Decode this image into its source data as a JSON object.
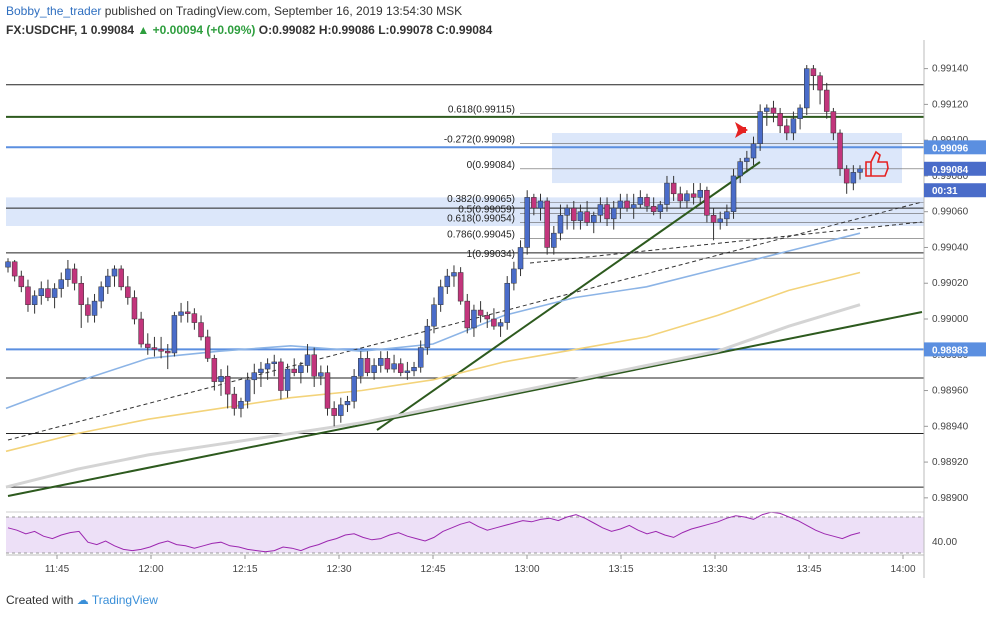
{
  "header": {
    "author": "Bobby_the_trader",
    "published": "published on TradingView.com, September 16, 2019 13:54:30 MSK"
  },
  "quote": {
    "symbol": "FX:USDCHF, 1",
    "last": "0.99084",
    "change_icon": "triangle-up-icon",
    "change": "+0.00094 (+0.09%)",
    "open": "O:0.99082",
    "high": "H:0.99086",
    "low": "L:0.99078",
    "close": "C:0.99084"
  },
  "footer": {
    "created_with": "Created with",
    "brand": "TradingView",
    "brand_icon": "tradingview-logo-icon"
  },
  "colors": {
    "up": "#4a6cc9",
    "down": "#c2357c",
    "ma_blue": "#8cb4e6",
    "ma_yellow": "#f3d37a",
    "ma_gray": "#d4d4d4",
    "trend": "#2d5a1e",
    "level_blue": "#5b8fe0",
    "rsi_line": "#9c27b0",
    "rsi_band": "#ede0f7",
    "zone": "#dce7fa",
    "arrow": "#e52222"
  },
  "chart_data": [
    {
      "type": "candlestick",
      "title": "FX:USDCHF, 1",
      "xlabel": "",
      "ylabel": "",
      "x_ticks": [
        "11:45",
        "12:00",
        "12:15",
        "12:30",
        "12:45",
        "13:00",
        "13:15",
        "13:30",
        "13:45",
        "14:00"
      ],
      "y_ticks": [
        "0.98900",
        "0.98920",
        "0.98940",
        "0.98960",
        "0.98980",
        "0.99000",
        "0.99020",
        "0.99040",
        "0.99060",
        "0.99080",
        "0.99100",
        "0.99120",
        "0.99140"
      ],
      "ylim": [
        0.98896,
        0.99156
      ],
      "candle_timeframe": "1 minute",
      "candles": [
        [
          0.99029,
          0.99034,
          0.99026,
          0.99032
        ],
        [
          0.99032,
          0.99033,
          0.99021,
          0.99024
        ],
        [
          0.99024,
          0.99027,
          0.99015,
          0.99018
        ],
        [
          0.99018,
          0.99022,
          0.99004,
          0.99008
        ],
        [
          0.99008,
          0.99016,
          0.99003,
          0.99013
        ],
        [
          0.99013,
          0.99021,
          0.99008,
          0.99017
        ],
        [
          0.99017,
          0.99022,
          0.9901,
          0.99012
        ],
        [
          0.99012,
          0.9902,
          0.99006,
          0.99017
        ],
        [
          0.99017,
          0.99026,
          0.99012,
          0.99022
        ],
        [
          0.99022,
          0.99033,
          0.99018,
          0.99028
        ],
        [
          0.99028,
          0.99031,
          0.99016,
          0.9902
        ],
        [
          0.9902,
          0.99024,
          0.98995,
          0.99008
        ],
        [
          0.99008,
          0.99012,
          0.98998,
          0.99002
        ],
        [
          0.99002,
          0.99014,
          0.98998,
          0.9901
        ],
        [
          0.9901,
          0.99021,
          0.99006,
          0.99018
        ],
        [
          0.99018,
          0.99028,
          0.99014,
          0.99024
        ],
        [
          0.99024,
          0.9903,
          0.99018,
          0.99028
        ],
        [
          0.99028,
          0.9903,
          0.99016,
          0.99018
        ],
        [
          0.99018,
          0.99024,
          0.99008,
          0.99012
        ],
        [
          0.99012,
          0.99016,
          0.98997,
          0.99
        ],
        [
          0.99,
          0.99004,
          0.98984,
          0.98986
        ],
        [
          0.98986,
          0.98992,
          0.9898,
          0.98984
        ],
        [
          0.98984,
          0.9899,
          0.98979,
          0.98983
        ],
        [
          0.98983,
          0.9899,
          0.98978,
          0.98982
        ],
        [
          0.98982,
          0.98986,
          0.98972,
          0.98981
        ],
        [
          0.98981,
          0.99004,
          0.98979,
          0.99002
        ],
        [
          0.99002,
          0.99009,
          0.98998,
          0.99004
        ],
        [
          0.99004,
          0.9901,
          0.98998,
          0.99003
        ],
        [
          0.99003,
          0.99006,
          0.98994,
          0.98998
        ],
        [
          0.98998,
          0.99002,
          0.98988,
          0.9899
        ],
        [
          0.9899,
          0.98994,
          0.98976,
          0.98978
        ],
        [
          0.98978,
          0.9898,
          0.9896,
          0.98965
        ],
        [
          0.98965,
          0.98972,
          0.98957,
          0.98968
        ],
        [
          0.98968,
          0.98974,
          0.9895,
          0.98958
        ],
        [
          0.98958,
          0.98962,
          0.98946,
          0.9895
        ],
        [
          0.9895,
          0.98956,
          0.98945,
          0.98954
        ],
        [
          0.98954,
          0.9897,
          0.9895,
          0.98966
        ],
        [
          0.98966,
          0.98975,
          0.98958,
          0.9897
        ],
        [
          0.9897,
          0.98976,
          0.98962,
          0.98972
        ],
        [
          0.98972,
          0.98978,
          0.98966,
          0.98975
        ],
        [
          0.98975,
          0.9898,
          0.98968,
          0.98976
        ],
        [
          0.98976,
          0.98978,
          0.98955,
          0.9896
        ],
        [
          0.9896,
          0.98975,
          0.98956,
          0.98972
        ],
        [
          0.98972,
          0.98978,
          0.98968,
          0.9897
        ],
        [
          0.9897,
          0.98976,
          0.98964,
          0.98974
        ],
        [
          0.98974,
          0.98986,
          0.9897,
          0.9898
        ],
        [
          0.9898,
          0.98984,
          0.98962,
          0.98968
        ],
        [
          0.98968,
          0.98974,
          0.98963,
          0.9897
        ],
        [
          0.9897,
          0.98974,
          0.98946,
          0.9895
        ],
        [
          0.9895,
          0.98954,
          0.9894,
          0.98946
        ],
        [
          0.98946,
          0.98956,
          0.98942,
          0.98952
        ],
        [
          0.98952,
          0.98957,
          0.98948,
          0.98954
        ],
        [
          0.98954,
          0.98972,
          0.9895,
          0.98968
        ],
        [
          0.98968,
          0.98982,
          0.98964,
          0.98978
        ],
        [
          0.98978,
          0.98982,
          0.98968,
          0.9897
        ],
        [
          0.9897,
          0.98978,
          0.98966,
          0.98974
        ],
        [
          0.98974,
          0.98982,
          0.9897,
          0.98978
        ],
        [
          0.98978,
          0.98982,
          0.9897,
          0.98972
        ],
        [
          0.98972,
          0.9898,
          0.9897,
          0.98975
        ],
        [
          0.98975,
          0.98978,
          0.98968,
          0.9897
        ],
        [
          0.9897,
          0.98976,
          0.98966,
          0.98971
        ],
        [
          0.98971,
          0.98976,
          0.98968,
          0.98973
        ],
        [
          0.98973,
          0.98988,
          0.9897,
          0.98984
        ],
        [
          0.98984,
          0.99,
          0.9898,
          0.98996
        ],
        [
          0.98996,
          0.99012,
          0.98992,
          0.99008
        ],
        [
          0.99008,
          0.99022,
          0.99004,
          0.99018
        ],
        [
          0.99018,
          0.99028,
          0.99014,
          0.99024
        ],
        [
          0.99024,
          0.9903,
          0.99018,
          0.99026
        ],
        [
          0.99026,
          0.99029,
          0.99008,
          0.9901
        ],
        [
          0.9901,
          0.99014,
          0.98992,
          0.98995
        ],
        [
          0.98995,
          0.99008,
          0.9899,
          0.99005
        ],
        [
          0.99005,
          0.9901,
          0.98998,
          0.99002
        ],
        [
          0.99002,
          0.99004,
          0.98995,
          0.99
        ],
        [
          0.99,
          0.99006,
          0.98994,
          0.98996
        ],
        [
          0.98996,
          0.99,
          0.9899,
          0.98998
        ],
        [
          0.98998,
          0.99024,
          0.98994,
          0.9902
        ],
        [
          0.9902,
          0.99032,
          0.99016,
          0.99028
        ],
        [
          0.99028,
          0.99044,
          0.99024,
          0.9904
        ],
        [
          0.9904,
          0.99072,
          0.99036,
          0.99068
        ],
        [
          0.99068,
          0.9907,
          0.99058,
          0.99062
        ],
        [
          0.99062,
          0.9907,
          0.99055,
          0.99066
        ],
        [
          0.99066,
          0.99068,
          0.99036,
          0.9904
        ],
        [
          0.9904,
          0.99052,
          0.99036,
          0.99048
        ],
        [
          0.99048,
          0.99064,
          0.99044,
          0.99058
        ],
        [
          0.99058,
          0.99064,
          0.9905,
          0.99062
        ],
        [
          0.99062,
          0.99066,
          0.9905,
          0.99055
        ],
        [
          0.99055,
          0.99064,
          0.9905,
          0.9906
        ],
        [
          0.9906,
          0.99066,
          0.99052,
          0.99054
        ],
        [
          0.99054,
          0.9906,
          0.99048,
          0.99058
        ],
        [
          0.99058,
          0.99068,
          0.99054,
          0.99064
        ],
        [
          0.99064,
          0.99068,
          0.99052,
          0.99056
        ],
        [
          0.99056,
          0.99066,
          0.9905,
          0.99062
        ],
        [
          0.99062,
          0.9907,
          0.99056,
          0.99066
        ],
        [
          0.99066,
          0.9907,
          0.9906,
          0.99062
        ],
        [
          0.99062,
          0.9907,
          0.99056,
          0.99064
        ],
        [
          0.99064,
          0.99072,
          0.99062,
          0.99068
        ],
        [
          0.99068,
          0.9907,
          0.9906,
          0.99063
        ],
        [
          0.99063,
          0.99068,
          0.99058,
          0.9906
        ],
        [
          0.9906,
          0.99066,
          0.99056,
          0.99064
        ],
        [
          0.99064,
          0.9908,
          0.9906,
          0.99076
        ],
        [
          0.99076,
          0.9908,
          0.99066,
          0.9907
        ],
        [
          0.9907,
          0.99074,
          0.99062,
          0.99066
        ],
        [
          0.99066,
          0.99072,
          0.99062,
          0.9907
        ],
        [
          0.9907,
          0.99076,
          0.99064,
          0.99068
        ],
        [
          0.99068,
          0.99076,
          0.99064,
          0.99072
        ],
        [
          0.99072,
          0.99074,
          0.99054,
          0.99058
        ],
        [
          0.99058,
          0.99062,
          0.99044,
          0.99054
        ],
        [
          0.99054,
          0.9906,
          0.9905,
          0.99056
        ],
        [
          0.99056,
          0.99064,
          0.99052,
          0.9906
        ],
        [
          0.9906,
          0.99084,
          0.99056,
          0.9908
        ],
        [
          0.9908,
          0.9909,
          0.99076,
          0.99088
        ],
        [
          0.99088,
          0.99094,
          0.99082,
          0.9909
        ],
        [
          0.9909,
          0.99102,
          0.99086,
          0.99098
        ],
        [
          0.99098,
          0.9912,
          0.99094,
          0.99116
        ],
        [
          0.99116,
          0.9912,
          0.99108,
          0.99118
        ],
        [
          0.99118,
          0.99122,
          0.9911,
          0.99115
        ],
        [
          0.99115,
          0.99118,
          0.99104,
          0.99108
        ],
        [
          0.99108,
          0.99112,
          0.991,
          0.99104
        ],
        [
          0.99104,
          0.99116,
          0.991,
          0.99112
        ],
        [
          0.99112,
          0.9912,
          0.99106,
          0.99118
        ],
        [
          0.99118,
          0.99142,
          0.99114,
          0.9914
        ],
        [
          0.9914,
          0.99142,
          0.99128,
          0.99136
        ],
        [
          0.99136,
          0.99138,
          0.9912,
          0.99128
        ],
        [
          0.99128,
          0.99132,
          0.99112,
          0.99116
        ],
        [
          0.99116,
          0.99118,
          0.991,
          0.99104
        ],
        [
          0.99104,
          0.99106,
          0.9908,
          0.99084
        ],
        [
          0.99084,
          0.99086,
          0.9907,
          0.99076
        ],
        [
          0.99076,
          0.99086,
          0.99072,
          0.99082
        ],
        [
          0.99082,
          0.99086,
          0.99078,
          0.99084
        ]
      ],
      "moving_averages": [
        {
          "color": "blue",
          "values": [
            0.9895,
            0.98965,
            0.98978,
            0.98982,
            0.98985,
            0.98982,
            0.98986,
            0.99002,
            0.99012,
            0.99018,
            0.99028,
            0.99038,
            0.99048
          ]
        },
        {
          "color": "yellow",
          "values": [
            0.98926,
            0.98936,
            0.98944,
            0.9895,
            0.98956,
            0.9896,
            0.98966,
            0.98976,
            0.98983,
            0.9899,
            0.99002,
            0.99016,
            0.99026
          ]
        },
        {
          "color": "gray",
          "values": [
            0.98906,
            0.98916,
            0.98924,
            0.9893,
            0.98936,
            0.98942,
            0.9895,
            0.98958,
            0.98966,
            0.98974,
            0.98982,
            0.98996,
            0.99008
          ]
        }
      ],
      "price_tags": [
        {
          "label": "0.99096",
          "value": 0.99096,
          "bg": "#5b8fe0"
        },
        {
          "label": "0.99084",
          "value": 0.99084,
          "bg": "#4a6cc9"
        },
        {
          "label": "00:31",
          "value": 0.99072,
          "bg": "#4a6cc9"
        },
        {
          "label": "0.98983",
          "value": 0.98983,
          "bg": "#5b8fe0"
        }
      ],
      "fib_levels": [
        {
          "label": "0.618(0.99115)",
          "value": 0.99115
        },
        {
          "label": "-0.272(0.99098)",
          "value": 0.99098
        },
        {
          "label": "0(0.99084)",
          "value": 0.99084
        },
        {
          "label": "0.382(0.99065)",
          "value": 0.99065
        },
        {
          "label": "0.5(0.99059)",
          "value": 0.99059
        },
        {
          "label": "0.618(0.99054)",
          "value": 0.99054
        },
        {
          "label": "0.786(0.99045)",
          "value": 0.99045
        },
        {
          "label": "1(0.99034)",
          "value": 0.99034
        }
      ],
      "horizontal_levels": [
        0.99131,
        0.99113,
        0.99096,
        0.99062,
        0.99037,
        0.98983,
        0.98967,
        0.98936,
        0.98906
      ],
      "zones": [
        {
          "from": 0.99076,
          "to": 0.99104
        },
        {
          "from": 0.99052,
          "to": 0.99068
        }
      ]
    },
    {
      "type": "line",
      "title": "",
      "y_ticks": [
        "40.00"
      ],
      "ylim": [
        30,
        80
      ],
      "band": [
        40,
        70
      ],
      "values": [
        61,
        59,
        56,
        58,
        54,
        52,
        55,
        57,
        58,
        49,
        47,
        50,
        46,
        43,
        42,
        43,
        45,
        48,
        50,
        47,
        46,
        44,
        46,
        48,
        49,
        46,
        45,
        43,
        42,
        41,
        42,
        45,
        44,
        42,
        45,
        47,
        50,
        52,
        55,
        56,
        53,
        51,
        52,
        55,
        57,
        54,
        52,
        50,
        53,
        58,
        61,
        64,
        66,
        62,
        59,
        61,
        63,
        65,
        67,
        66,
        68,
        69,
        67,
        70,
        72,
        69,
        65,
        61,
        58,
        60,
        63,
        59,
        56,
        58,
        55,
        53,
        57,
        60,
        62,
        64,
        66,
        69,
        71,
        70,
        68,
        72,
        74,
        73,
        70,
        67,
        63,
        59,
        56,
        54,
        52,
        55,
        57
      ]
    }
  ]
}
